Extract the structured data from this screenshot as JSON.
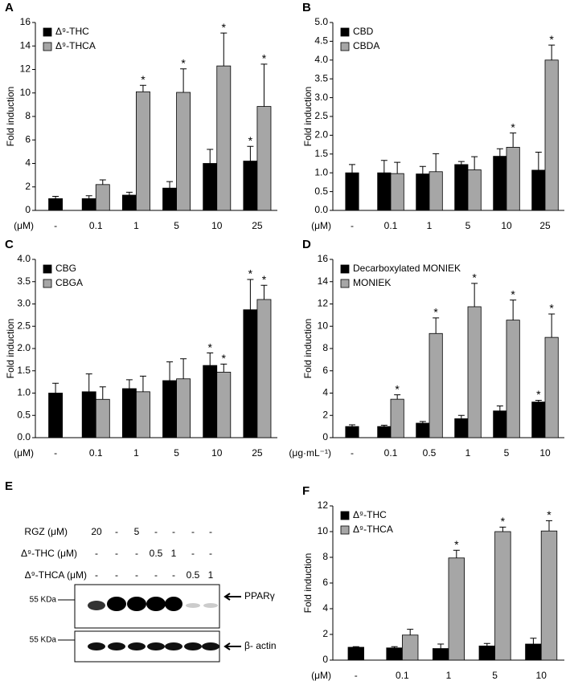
{
  "chart_data": [
    {
      "type": "bar",
      "label": "A",
      "y_label": "Fold induction",
      "x_label": "(μM)",
      "legend": "upper left",
      "categories": [
        "-",
        "0.1",
        "1",
        "5",
        "10",
        "25"
      ],
      "ylim": [
        0,
        16
      ],
      "yticks": [
        0,
        2,
        4,
        6,
        8,
        10,
        12,
        14,
        16
      ],
      "series": [
        {
          "name": "Δ⁹-THC",
          "color": "#000000",
          "values": [
            1.0,
            1.0,
            1.3,
            1.9,
            4.0,
            4.2
          ],
          "errors": [
            0.2,
            0.25,
            0.25,
            0.55,
            1.2,
            1.25
          ],
          "annotations": [
            null,
            null,
            null,
            null,
            null,
            "*"
          ]
        },
        {
          "name": "Δ⁹-THCA",
          "color": "#a6a6a6",
          "values": [
            null,
            2.2,
            10.1,
            10.05,
            12.3,
            8.85
          ],
          "errors": [
            null,
            0.4,
            0.55,
            2.0,
            2.8,
            3.6
          ],
          "annotations": [
            null,
            null,
            "*",
            "*",
            "*",
            "*"
          ]
        }
      ]
    },
    {
      "type": "bar",
      "label": "B",
      "y_label": "Fold induction",
      "x_label": "(μM)",
      "legend": "upper left",
      "categories": [
        "-",
        "0.1",
        "1",
        "5",
        "10",
        "25"
      ],
      "ylim": [
        0,
        5
      ],
      "yticks": [
        {
          "value": 0,
          "label": "0.0"
        },
        0.5,
        {
          "value": 1,
          "label": "1.0"
        },
        1.5,
        {
          "value": 2,
          "label": "2.0"
        },
        2.5,
        {
          "value": 3,
          "label": "3.0"
        },
        3.5,
        {
          "value": 4,
          "label": "4.0"
        },
        4.5,
        {
          "value": 5,
          "label": "5.0"
        }
      ],
      "series": [
        {
          "name": "CBD",
          "color": "#000000",
          "values": [
            1.0,
            1.0,
            0.97,
            1.22,
            1.44,
            1.07
          ],
          "errors": [
            0.22,
            0.33,
            0.2,
            0.08,
            0.2,
            0.48
          ],
          "annotations": [
            null,
            null,
            null,
            null,
            null,
            null
          ]
        },
        {
          "name": "CBDA",
          "color": "#a6a6a6",
          "values": [
            null,
            0.98,
            1.03,
            1.08,
            1.68,
            4.0
          ],
          "errors": [
            null,
            0.3,
            0.48,
            0.35,
            0.38,
            0.4
          ],
          "annotations": [
            null,
            null,
            null,
            null,
            "*",
            "*"
          ]
        }
      ]
    },
    {
      "type": "bar",
      "label": "C",
      "y_label": "Fold induction",
      "x_label": "(μM)",
      "legend": "upper left",
      "categories": [
        "-",
        "0.1",
        "1",
        "5",
        "10",
        "25"
      ],
      "ylim": [
        0,
        4
      ],
      "yticks": [
        {
          "value": 0,
          "label": "0.0"
        },
        0.5,
        {
          "value": 1,
          "label": "1.0"
        },
        1.5,
        {
          "value": 2,
          "label": "2.0"
        },
        2.5,
        {
          "value": 3,
          "label": "3.0"
        },
        3.5,
        {
          "value": 4,
          "label": "4.0"
        }
      ],
      "series": [
        {
          "name": "CBG",
          "color": "#000000",
          "values": [
            1.0,
            1.03,
            1.1,
            1.28,
            1.62,
            2.87
          ],
          "errors": [
            0.22,
            0.4,
            0.2,
            0.42,
            0.28,
            0.68
          ],
          "annotations": [
            null,
            null,
            null,
            null,
            "*",
            "*"
          ]
        },
        {
          "name": "CBGA",
          "color": "#a6a6a6",
          "values": [
            null,
            0.86,
            1.03,
            1.32,
            1.47,
            3.1
          ],
          "errors": [
            null,
            0.28,
            0.35,
            0.45,
            0.18,
            0.32
          ],
          "annotations": [
            null,
            null,
            null,
            null,
            "*",
            "*"
          ]
        }
      ]
    },
    {
      "type": "bar",
      "label": "D",
      "y_label": "Fold induction",
      "x_label": "(μg·mL⁻¹)",
      "legend": "upper left",
      "categories": [
        "-",
        "0.1",
        "0.5",
        "1",
        "5",
        "10"
      ],
      "ylim": [
        0,
        16
      ],
      "yticks": [
        0,
        2,
        4,
        6,
        8,
        10,
        12,
        14,
        16
      ],
      "series": [
        {
          "name": "Decarboxylated MONIEK",
          "color": "#000000",
          "values": [
            1.0,
            1.0,
            1.3,
            1.7,
            2.4,
            3.2
          ],
          "errors": [
            0.15,
            0.12,
            0.15,
            0.3,
            0.45,
            0.15
          ],
          "annotations": [
            null,
            null,
            null,
            null,
            null,
            "*"
          ]
        },
        {
          "name": "MONIEK",
          "color": "#a6a6a6",
          "values": [
            null,
            3.45,
            9.35,
            11.75,
            10.55,
            9.0
          ],
          "errors": [
            null,
            0.4,
            1.4,
            2.1,
            1.8,
            2.1
          ],
          "annotations": [
            null,
            "*",
            "*",
            "*",
            "*",
            "*"
          ]
        }
      ]
    },
    {
      "type": "bar",
      "label": "F",
      "y_label": "Fold induction",
      "x_label": "(μM)",
      "legend": "upper left",
      "categories": [
        "-",
        "0.1",
        "1",
        "5",
        "10"
      ],
      "ylim": [
        0,
        12
      ],
      "yticks": [
        0,
        2,
        4,
        6,
        8,
        10,
        12
      ],
      "series": [
        {
          "name": "Δ⁹-THC",
          "color": "#000000",
          "values": [
            1.0,
            0.95,
            0.9,
            1.1,
            1.25
          ],
          "errors": [
            0.05,
            0.1,
            0.35,
            0.2,
            0.45
          ],
          "annotations": [
            null,
            null,
            null,
            null,
            null
          ]
        },
        {
          "name": "Δ⁹-THCA",
          "color": "#a6a6a6",
          "values": [
            null,
            1.95,
            7.95,
            10.0,
            10.05
          ],
          "errors": [
            null,
            0.45,
            0.6,
            0.35,
            0.8
          ],
          "annotations": [
            null,
            null,
            "*",
            "*",
            "*"
          ]
        }
      ]
    }
  ],
  "blot": {
    "label": "E",
    "rows": [
      {
        "label": "RGZ (μM)",
        "lanes": [
          "20",
          "-",
          "5",
          "-",
          "-",
          "-",
          "-"
        ]
      },
      {
        "label": "Δ⁹-THC (μM)",
        "lanes": [
          "-",
          "-",
          "-",
          "0.5",
          "1",
          "-",
          "-"
        ]
      },
      {
        "label": "Δ⁹-THCA (μM)",
        "lanes": [
          "-",
          "-",
          "-",
          "-",
          "-",
          "0.5",
          "1"
        ]
      }
    ],
    "markers": [
      "55 KDa",
      "55 KDa"
    ],
    "bands": [
      "PPARγ",
      "β- actin"
    ]
  }
}
